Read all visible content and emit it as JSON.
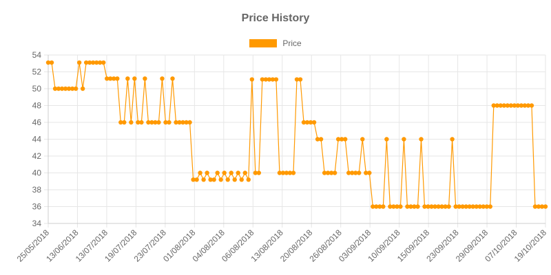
{
  "chart_data": {
    "type": "line",
    "title": "Price History",
    "xlabel": "",
    "ylabel": "",
    "ylim": [
      34,
      54
    ],
    "yticks": [
      34,
      36,
      38,
      40,
      42,
      44,
      46,
      48,
      50,
      52,
      54
    ],
    "grid": true,
    "legend": "top-center",
    "x_tick_labels": [
      "25/05/2018",
      "13/06/2018",
      "13/07/2018",
      "19/07/2018",
      "23/07/2018",
      "01/08/2018",
      "04/08/2018",
      "06/08/2018",
      "13/08/2018",
      "20/08/2018",
      "26/08/2018",
      "03/09/2018",
      "10/09/2018",
      "15/09/2018",
      "23/09/2018",
      "29/09/2018",
      "07/10/2018",
      "19/10/2018"
    ],
    "series": [
      {
        "name": "Price",
        "color": "#ff9900",
        "values": [
          53.1,
          53.1,
          50,
          50,
          50,
          50,
          50,
          50,
          50,
          53.1,
          50,
          53.1,
          53.1,
          53.1,
          53.1,
          53.1,
          53.1,
          51.2,
          51.2,
          51.2,
          51.2,
          46,
          46,
          51.2,
          46,
          51.2,
          46,
          46,
          51.2,
          46,
          46,
          46,
          46,
          51.2,
          46,
          46,
          51.2,
          46,
          46,
          46,
          46,
          46,
          39.2,
          39.2,
          40,
          39.2,
          40,
          39.2,
          39.2,
          40,
          39.2,
          40,
          39.2,
          40,
          39.2,
          40,
          39.2,
          40,
          39.2,
          51.1,
          40,
          40,
          51.1,
          51.1,
          51.1,
          51.1,
          51.1,
          40,
          40,
          40,
          40,
          40,
          51.1,
          51.1,
          46,
          46,
          46,
          46,
          44,
          44,
          40,
          40,
          40,
          40,
          44,
          44,
          44,
          40,
          40,
          40,
          40,
          44,
          40,
          40,
          36,
          36,
          36,
          36,
          44,
          36,
          36,
          36,
          36,
          44,
          36,
          36,
          36,
          36,
          44,
          36,
          36,
          36,
          36,
          36,
          36,
          36,
          36,
          44,
          36,
          36,
          36,
          36,
          36,
          36,
          36,
          36,
          36,
          36,
          36,
          48,
          48,
          48,
          48,
          48,
          48,
          48,
          48,
          48,
          48,
          48,
          48,
          36,
          36,
          36,
          36
        ]
      }
    ]
  }
}
